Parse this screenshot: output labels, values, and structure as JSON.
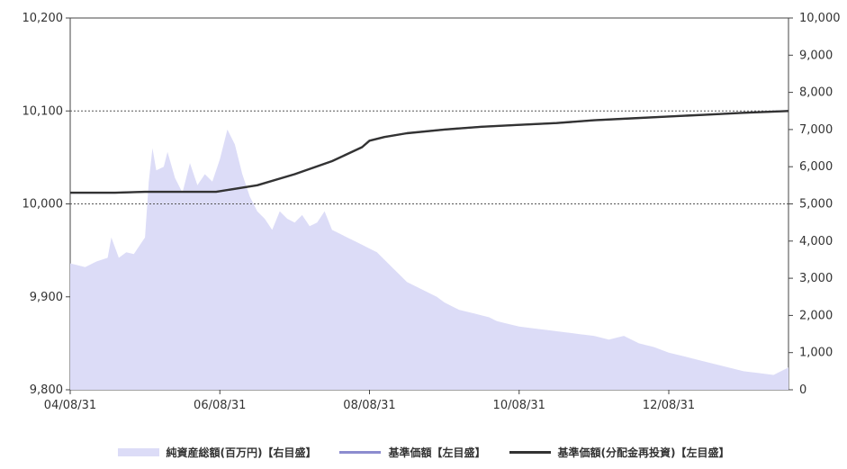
{
  "chart_data": {
    "type": "line",
    "title": "",
    "xlabel": "",
    "x_ticks": [
      "04/08/31",
      "06/08/31",
      "08/08/31",
      "10/08/31",
      "12/08/31"
    ],
    "y_left": {
      "min": 9800,
      "max": 10200,
      "ticks": [
        "9,800",
        "9,900",
        "10,000",
        "10,100",
        "10,200"
      ]
    },
    "y_right": {
      "min": 0,
      "max": 10000,
      "ticks": [
        "0",
        "1,000",
        "2,000",
        "3,000",
        "4,000",
        "5,000",
        "6,000",
        "7,000",
        "8,000",
        "9,000",
        "10,000"
      ]
    },
    "dotted_grid_left": [
      10000,
      10100
    ],
    "series": [
      {
        "name": "純資産総額(百万円)【右目盛】",
        "kind": "area",
        "axis": "right",
        "color": "#dcdcf7",
        "x": [
          0.0,
          0.1,
          0.2,
          0.35,
          0.5,
          0.55,
          0.65,
          0.75,
          0.85,
          1.0,
          1.05,
          1.1,
          1.15,
          1.25,
          1.3,
          1.4,
          1.5,
          1.6,
          1.7,
          1.8,
          1.9,
          2.0,
          2.1,
          2.2,
          2.3,
          2.4,
          2.5,
          2.6,
          2.7,
          2.8,
          2.9,
          3.0,
          3.1,
          3.2,
          3.3,
          3.4,
          3.5,
          3.6,
          3.7,
          3.8,
          3.9,
          4.0,
          4.1,
          4.2,
          4.3,
          4.4,
          4.5,
          4.6,
          4.7,
          4.8,
          4.9,
          5.0,
          5.1,
          5.2,
          5.3,
          5.4,
          5.5,
          5.6,
          5.7,
          5.8,
          5.9,
          6.0,
          6.2,
          6.4,
          6.6,
          6.8,
          7.0,
          7.2,
          7.4,
          7.6,
          7.8,
          8.0,
          8.2,
          8.4,
          8.6,
          8.8,
          9.0,
          9.2,
          9.4,
          9.6
        ],
        "values": [
          3400,
          3350,
          3300,
          3450,
          3550,
          4100,
          3550,
          3700,
          3650,
          4100,
          5600,
          6500,
          5900,
          6000,
          6400,
          5700,
          5300,
          6100,
          5500,
          5800,
          5600,
          6200,
          7000,
          6600,
          5800,
          5200,
          4800,
          4600,
          4300,
          4800,
          4600,
          4500,
          4700,
          4400,
          4500,
          4800,
          4300,
          4200,
          4100,
          4000,
          3900,
          3800,
          3700,
          3500,
          3300,
          3100,
          2900,
          2800,
          2700,
          2600,
          2500,
          2350,
          2250,
          2150,
          2100,
          2050,
          2000,
          1950,
          1850,
          1800,
          1750,
          1700,
          1650,
          1600,
          1550,
          1500,
          1450,
          1350,
          1450,
          1250,
          1150,
          1000,
          900,
          800,
          700,
          600,
          500,
          450,
          400,
          600
        ]
      },
      {
        "name": "基準価額【左目盛】",
        "kind": "line",
        "axis": "left",
        "color": "#8c8ccf",
        "x": [
          0.0,
          0.6,
          1.0,
          1.8,
          1.95,
          2.5,
          3.0,
          3.5,
          3.9,
          4.0,
          4.2,
          4.5,
          5.0,
          5.5,
          6.0,
          6.5,
          7.0,
          7.5,
          8.0,
          8.5,
          9.0,
          9.6
        ],
        "values": [
          10012,
          10012,
          10013,
          10013,
          10013,
          10020,
          10032,
          10046,
          10061,
          10068,
          10072,
          10076,
          10080,
          10083,
          10085,
          10087,
          10090,
          10092,
          10094,
          10096,
          10098,
          10100
        ]
      },
      {
        "name": "基準価額(分配金再投資)【左目盛】",
        "kind": "line",
        "axis": "left",
        "color": "#333333",
        "x": [
          0.0,
          0.6,
          1.0,
          1.8,
          1.95,
          2.5,
          3.0,
          3.5,
          3.9,
          4.0,
          4.2,
          4.5,
          5.0,
          5.5,
          6.0,
          6.5,
          7.0,
          7.5,
          8.0,
          8.5,
          9.0,
          9.6
        ],
        "values": [
          10012,
          10012,
          10013,
          10013,
          10013,
          10020,
          10032,
          10046,
          10061,
          10068,
          10072,
          10076,
          10080,
          10083,
          10085,
          10087,
          10090,
          10092,
          10094,
          10096,
          10098,
          10100
        ]
      }
    ],
    "legend": {
      "position": "bottom"
    }
  }
}
